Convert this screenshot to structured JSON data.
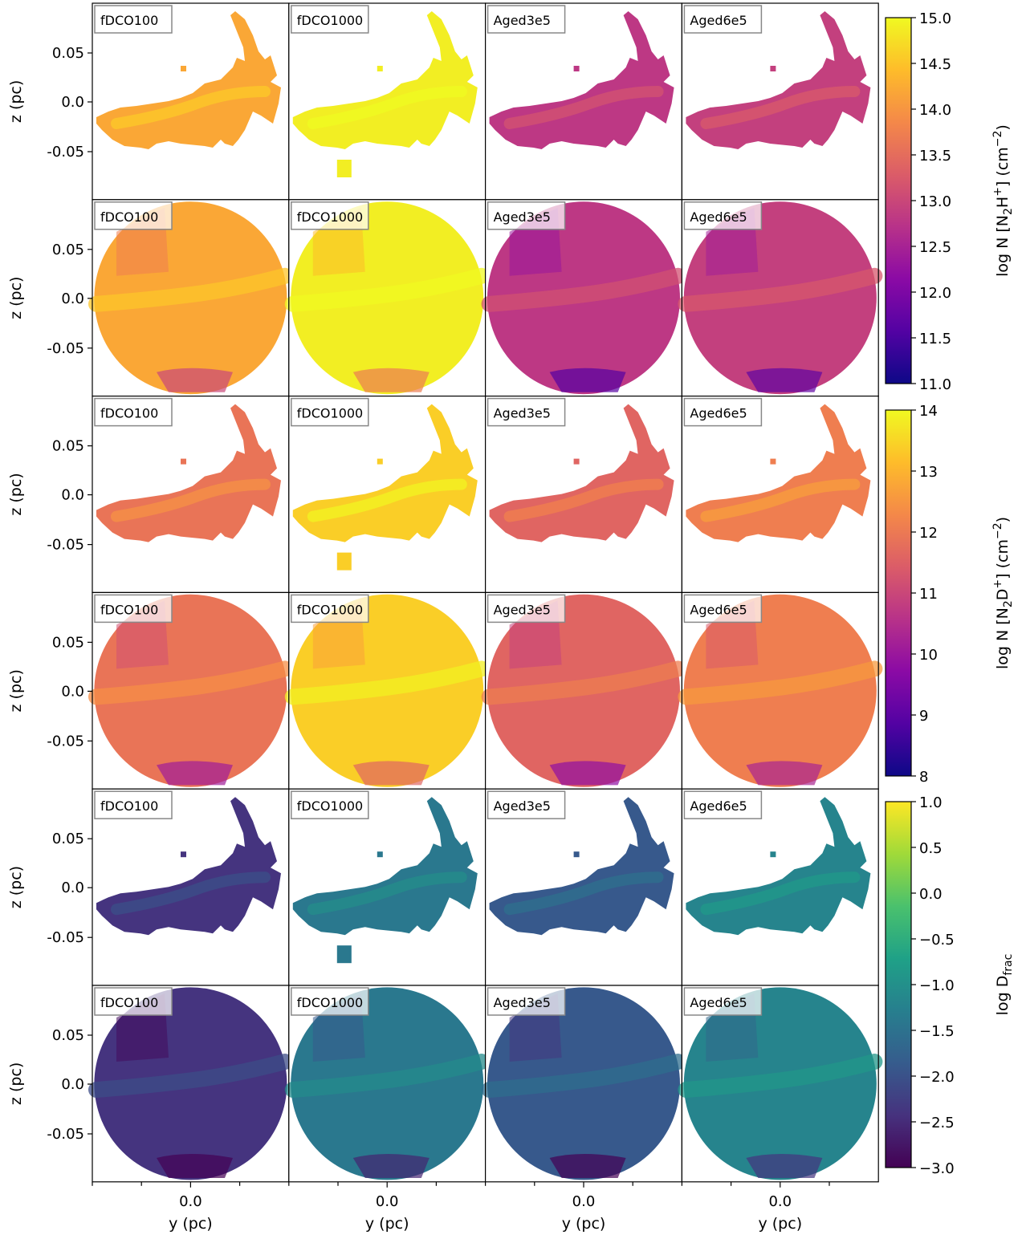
{
  "columns": [
    "fDCO100",
    "fDCO1000",
    "Aged3e5",
    "Aged6e5"
  ],
  "panel_label_color": "#888888",
  "x_axis": {
    "label": "y (pc)",
    "tick": "0.0"
  },
  "y_axis": {
    "label": "z (pc)",
    "ticks": [
      "0.05",
      "0.0",
      "-0.05"
    ]
  },
  "chart_data": [
    {
      "type": "heatmap",
      "quantity": "N2H+",
      "colormap": "plasma",
      "rows": [
        "masked",
        "full"
      ],
      "panels": [
        "fDCO100",
        "fDCO1000",
        "Aged3e5",
        "Aged6e5"
      ],
      "colorbar": {
        "label_main": "log N [N",
        "label_sub": "2",
        "label_mid": "H",
        "label_sup": "+",
        "label_end": "] (cm",
        "label_exp": "−2",
        "label_close": ")",
        "ticks": [
          "15.0",
          "14.5",
          "14.0",
          "13.5",
          "13.0",
          "12.5",
          "12.0",
          "11.5",
          "11.0"
        ],
        "range": [
          11.0,
          15.0
        ]
      },
      "typical_values": {
        "fDCO100": 14.2,
        "fDCO1000": 14.9,
        "Aged3e5": 12.8,
        "Aged6e5": 12.9
      }
    },
    {
      "type": "heatmap",
      "quantity": "N2D+",
      "colormap": "plasma",
      "rows": [
        "masked",
        "full"
      ],
      "panels": [
        "fDCO100",
        "fDCO1000",
        "Aged3e5",
        "Aged6e5"
      ],
      "colorbar": {
        "label_main": "log N [N",
        "label_sub": "2",
        "label_mid": "D",
        "label_sup": "+",
        "label_end": "] (cm",
        "label_exp": "−2",
        "label_close": ")",
        "ticks": [
          "14",
          "13",
          "12",
          "11",
          "10",
          "9",
          "8"
        ],
        "range": [
          8,
          14
        ]
      },
      "typical_values": {
        "fDCO100": 11.9,
        "fDCO1000": 13.4,
        "Aged3e5": 11.6,
        "Aged6e5": 12.1
      }
    },
    {
      "type": "heatmap",
      "quantity": "Dfrac",
      "colormap": "viridis",
      "rows": [
        "masked",
        "full"
      ],
      "panels": [
        "fDCO100",
        "fDCO1000",
        "Aged3e5",
        "Aged6e5"
      ],
      "colorbar": {
        "label_main": "log D",
        "label_sub": "frac",
        "ticks": [
          "1.0",
          "0.5",
          "0.0",
          "−0.5",
          "−1.0",
          "−1.5",
          "−2.0",
          "−2.5",
          "−3.0"
        ],
        "range": [
          -3.0,
          1.0
        ]
      },
      "typical_values": {
        "fDCO100": -2.4,
        "fDCO1000": -1.4,
        "Aged3e5": -1.9,
        "Aged6e5": -1.2
      }
    }
  ]
}
